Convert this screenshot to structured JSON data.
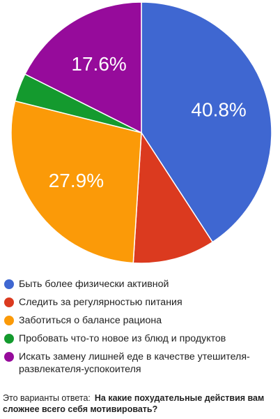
{
  "chart_data": {
    "type": "pie",
    "start_angle_deg": 0,
    "direction": "clockwise",
    "slices": [
      {
        "label": "Быть более физически активной",
        "value": 40.8,
        "value_label": "40.8%",
        "color": "#3f67d1"
      },
      {
        "label": "Следить за регулярностью питания",
        "value": 10.2,
        "value_label": "",
        "color": "#db3a1f"
      },
      {
        "label": "Заботиться о балансе рациона",
        "value": 27.9,
        "value_label": "27.9%",
        "color": "#fb9a08"
      },
      {
        "label": "Пробовать что-то новое из блюд и продуктов",
        "value": 3.5,
        "value_label": "",
        "color": "#149a2e"
      },
      {
        "label": "Искать замену лишней еде в качестве утешителя-развлекателя-успокоителя",
        "value": 17.6,
        "value_label": "17.6%",
        "color": "#960b9b"
      }
    ],
    "legend_position": "bottom"
  },
  "caption": {
    "prefix": "Это варианты ответа:",
    "question": "На какие похудательные действия вам сложнее всего себя мотивировать?"
  }
}
